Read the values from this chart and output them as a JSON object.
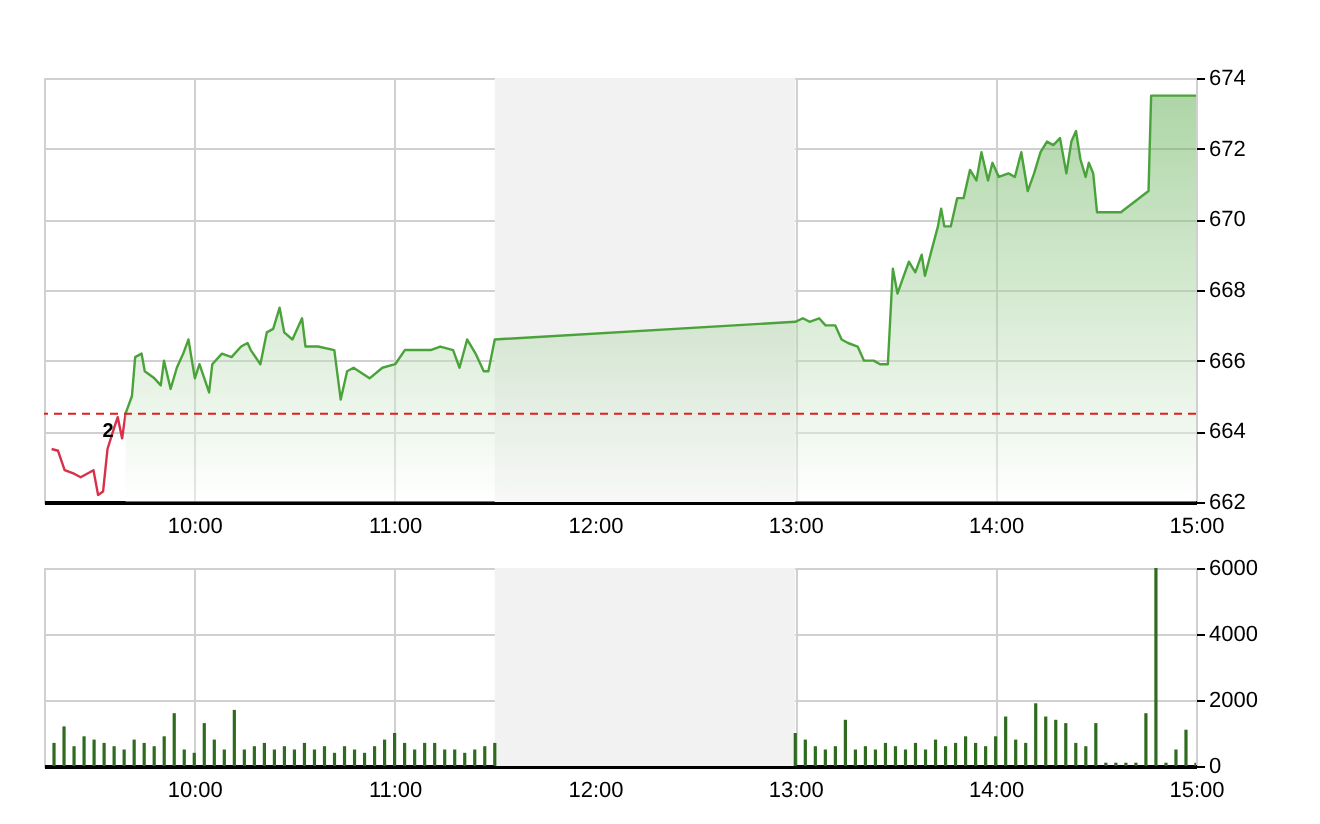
{
  "chart_data": [
    {
      "type": "area",
      "xlim": [
        9.25,
        15
      ],
      "xticks": [
        {
          "value": 10,
          "label": "10:00"
        },
        {
          "value": 11,
          "label": "11:00"
        },
        {
          "value": 12,
          "label": "12:00"
        },
        {
          "value": 13,
          "label": "13:00"
        },
        {
          "value": 14,
          "label": "14:00"
        },
        {
          "value": 15,
          "label": "15:00"
        }
      ],
      "ylim": [
        662,
        674
      ],
      "yticks": [
        662,
        664,
        666,
        668,
        670,
        672,
        674
      ],
      "grid": true,
      "series": [
        {
          "type": "line",
          "color": "#d9304a",
          "x": [
            9.288,
            9.32,
            9.353,
            9.4,
            9.433,
            9.497,
            9.52,
            9.545,
            9.567,
            9.6,
            9.618,
            9.64,
            9.657
          ],
          "values": [
            663.5,
            663.45,
            662.9,
            662.8,
            662.7,
            662.9,
            662.2,
            662.3,
            663.5,
            664.1,
            664.4,
            663.8,
            664.5
          ]
        },
        {
          "color": "#4aa33a",
          "x": [
            9.657,
            9.689,
            9.705,
            9.737,
            9.753,
            9.801,
            9.833,
            9.849,
            9.882,
            9.913,
            9.945,
            9.971,
            10.003,
            10.026,
            10.074,
            10.09,
            10.138,
            10.186,
            10.234,
            10.266,
            10.282,
            10.33,
            10.362,
            10.394,
            10.426,
            10.449,
            10.49,
            10.538,
            10.555,
            10.618,
            10.699,
            10.731,
            10.763,
            10.795,
            10.875,
            10.939,
            11.003,
            11.051,
            11.099,
            11.18,
            11.228,
            11.292,
            11.324,
            11.362,
            11.404,
            11.445,
            11.468,
            11.5,
            13.0,
            13.038,
            13.071,
            13.119,
            13.151,
            13.199,
            13.231,
            13.263,
            13.311,
            13.343,
            13.391,
            13.423,
            13.462,
            13.487,
            13.51,
            13.535,
            13.567,
            13.599,
            13.631,
            13.647,
            13.679,
            13.712,
            13.728,
            13.744,
            13.776,
            13.808,
            13.84,
            13.872,
            13.904,
            13.929,
            13.962,
            13.984,
            14.016,
            14.064,
            14.096,
            14.128,
            14.16,
            14.192,
            14.224,
            14.256,
            14.288,
            14.321,
            14.353,
            14.378,
            14.401,
            14.423,
            14.449,
            14.465,
            14.487,
            14.506,
            14.625,
            14.763,
            14.776,
            15.0
          ],
          "values": [
            664.5,
            665.0,
            666.1,
            666.2,
            665.7,
            665.5,
            665.3,
            666.0,
            665.2,
            665.8,
            666.2,
            666.6,
            665.5,
            665.9,
            665.1,
            665.9,
            666.2,
            666.1,
            666.4,
            666.5,
            666.3,
            665.9,
            666.8,
            666.9,
            667.5,
            666.8,
            666.6,
            667.2,
            666.4,
            666.4,
            666.3,
            664.9,
            665.7,
            665.8,
            665.5,
            665.8,
            665.9,
            666.3,
            666.3,
            666.3,
            666.4,
            666.3,
            665.8,
            666.6,
            666.2,
            665.7,
            665.7,
            666.6,
            667.1,
            667.2,
            667.1,
            667.2,
            667.0,
            667.0,
            666.6,
            666.5,
            666.4,
            666.0,
            666.0,
            665.9,
            665.9,
            668.6,
            667.9,
            668.3,
            668.8,
            668.5,
            669.0,
            668.4,
            669.1,
            669.8,
            670.3,
            669.8,
            669.8,
            670.6,
            670.6,
            671.4,
            671.1,
            671.9,
            671.1,
            671.6,
            671.2,
            671.3,
            671.2,
            671.9,
            670.8,
            671.3,
            671.9,
            672.2,
            672.1,
            672.3,
            671.3,
            672.2,
            672.5,
            671.7,
            671.2,
            671.6,
            671.3,
            670.2,
            670.2,
            670.8,
            673.5,
            673.5
          ]
        }
      ],
      "ref_lines": [
        {
          "axis": "y",
          "value": 664.5,
          "color": "#e02020",
          "line_style": "dashed"
        }
      ],
      "bands": [
        {
          "axis": "x",
          "from": 11.5,
          "to": 13,
          "color": "#f2f2f2"
        }
      ],
      "annotations": [
        {
          "text": "2",
          "x": 9.62,
          "y": 664.0
        }
      ]
    },
    {
      "type": "bar",
      "xlim": [
        9.25,
        15
      ],
      "xticks": [
        {
          "value": 10,
          "label": "10:00"
        },
        {
          "value": 11,
          "label": "11:00"
        },
        {
          "value": 12,
          "label": "12:00"
        },
        {
          "value": 13,
          "label": "13:00"
        },
        {
          "value": 14,
          "label": "14:00"
        },
        {
          "value": 15,
          "label": "15:00"
        }
      ],
      "ylim": [
        0,
        6000
      ],
      "yticks": [
        0,
        2000,
        4000,
        6000
      ],
      "grid": true,
      "series": [
        {
          "color": "#2e6b1e",
          "x": [
            9.3,
            9.35,
            9.4,
            9.45,
            9.5,
            9.55,
            9.6,
            9.65,
            9.7,
            9.75,
            9.8,
            9.85,
            9.9,
            9.95,
            10.0,
            10.05,
            10.1,
            10.15,
            10.2,
            10.25,
            10.3,
            10.35,
            10.4,
            10.45,
            10.5,
            10.55,
            10.6,
            10.65,
            10.7,
            10.75,
            10.8,
            10.85,
            10.9,
            10.95,
            11.0,
            11.05,
            11.1,
            11.15,
            11.2,
            11.25,
            11.3,
            11.35,
            11.4,
            11.45,
            11.5,
            13.0,
            13.05,
            13.1,
            13.15,
            13.2,
            13.25,
            13.3,
            13.35,
            13.4,
            13.45,
            13.5,
            13.55,
            13.6,
            13.65,
            13.7,
            13.75,
            13.8,
            13.85,
            13.9,
            13.95,
            14.0,
            14.05,
            14.1,
            14.15,
            14.2,
            14.25,
            14.3,
            14.35,
            14.4,
            14.45,
            14.5,
            14.55,
            14.6,
            14.65,
            14.7,
            14.75,
            14.8,
            14.85,
            14.9,
            14.95,
            15.0
          ],
          "values": [
            700,
            1200,
            600,
            900,
            800,
            700,
            600,
            500,
            800,
            700,
            600,
            900,
            1600,
            500,
            400,
            1300,
            800,
            500,
            1700,
            500,
            600,
            700,
            500,
            600,
            500,
            700,
            500,
            600,
            400,
            600,
            500,
            400,
            600,
            800,
            1000,
            700,
            500,
            700,
            700,
            500,
            500,
            400,
            500,
            600,
            700,
            1000,
            800,
            600,
            500,
            600,
            1400,
            500,
            600,
            500,
            700,
            600,
            500,
            700,
            500,
            800,
            600,
            700,
            900,
            700,
            600,
            900,
            1500,
            800,
            700,
            1900,
            1500,
            1400,
            1300,
            700,
            600,
            1300,
            100,
            100,
            100,
            100,
            1600,
            6000,
            100,
            500,
            1100,
            100
          ]
        }
      ],
      "bands": [
        {
          "axis": "x",
          "from": 11.5,
          "to": 13,
          "color": "#f2f2f2"
        }
      ]
    }
  ]
}
